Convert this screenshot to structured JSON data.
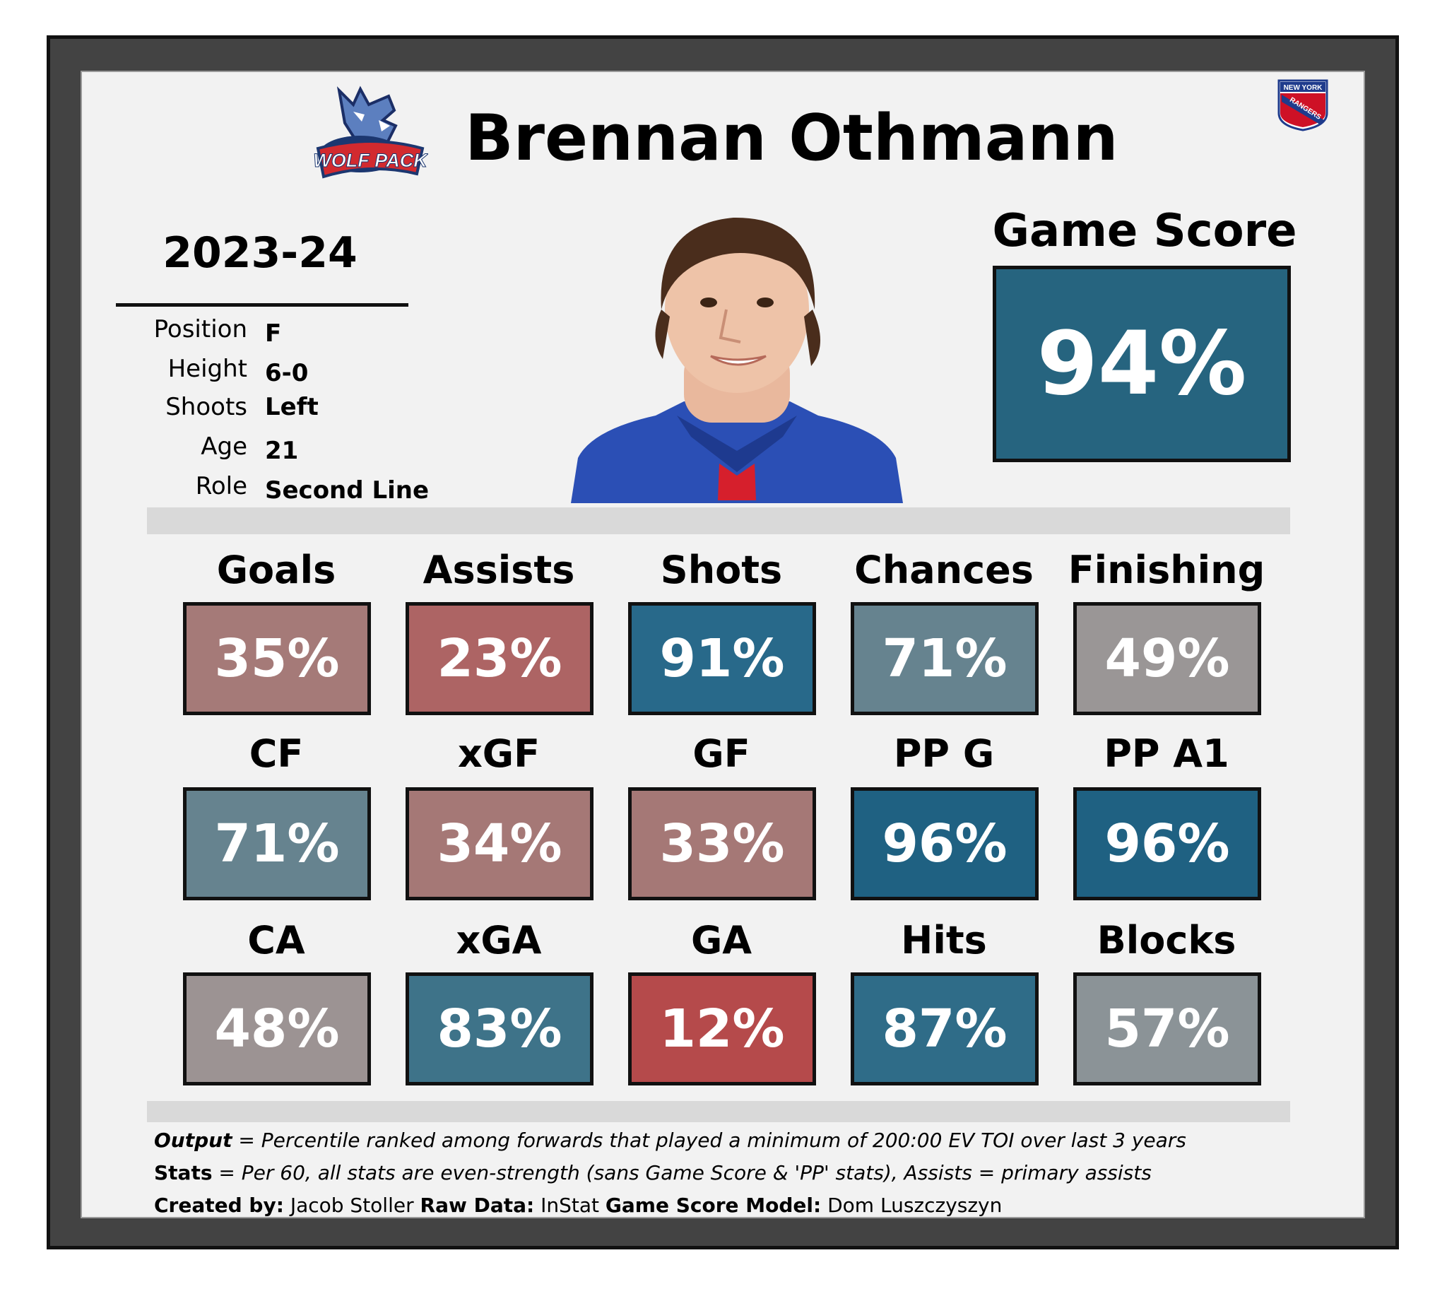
{
  "player_name": "Brennan Othmann",
  "season": "2023-24",
  "info": [
    {
      "label": "Position",
      "value": "F"
    },
    {
      "label": "Height",
      "value": "6-0"
    },
    {
      "label": "Shoots",
      "value": "Left"
    },
    {
      "label": "Age",
      "value": "21"
    },
    {
      "label": "Role",
      "value": "Second Line"
    }
  ],
  "game_score": {
    "label": "Game Score",
    "value": "94%",
    "percentile": 94,
    "color": "#26647f"
  },
  "logos": {
    "left": {
      "icon": "hartford-wolf-pack-logo",
      "text": "WOLF PACK"
    },
    "right": {
      "icon": "new-york-rangers-logo",
      "line1": "NEW YORK",
      "line2": "RANGERS"
    }
  },
  "headshot": {
    "icon": "player-headshot-photo"
  },
  "stats": [
    [
      {
        "label": "Goals",
        "value": "35%",
        "color": "#a57a78"
      },
      {
        "label": "Assists",
        "value": "23%",
        "color": "#ad6464"
      },
      {
        "label": "Shots",
        "value": "91%",
        "color": "#28698a"
      },
      {
        "label": "Chances",
        "value": "71%",
        "color": "#66838f"
      },
      {
        "label": "Finishing",
        "value": "49%",
        "color": "#9a9696"
      }
    ],
    [
      {
        "label": "CF",
        "value": "71%",
        "color": "#66838f"
      },
      {
        "label": "xGF",
        "value": "34%",
        "color": "#a57876"
      },
      {
        "label": "GF",
        "value": "33%",
        "color": "#a57876"
      },
      {
        "label": "PP G",
        "value": "96%",
        "color": "#1f6182"
      },
      {
        "label": "PP A1",
        "value": "96%",
        "color": "#1f6182"
      }
    ],
    [
      {
        "label": "CA",
        "value": "48%",
        "color": "#9c9393"
      },
      {
        "label": "xGA",
        "value": "83%",
        "color": "#3e7389"
      },
      {
        "label": "GA",
        "value": "12%",
        "color": "#b54a4b"
      },
      {
        "label": "Hits",
        "value": "87%",
        "color": "#2f6c88"
      },
      {
        "label": "Blocks",
        "value": "57%",
        "color": "#8b9397"
      }
    ]
  ],
  "footer": {
    "line1_label": "Output",
    "line1_text": " = Percentile ranked among forwards that played a minimum of 200:00 EV TOI over last 3 years",
    "line2_label": "Stats",
    "line2_text": " = Per 60, all stats are even-strength (sans Game Score & 'PP' stats), Assists = primary assists",
    "created_label": "Created by:",
    "created_value": "Jacob Stoller",
    "raw_label": "Raw Data:",
    "raw_value": "InStat",
    "model_label": "Game Score Model:",
    "model_value": "Dom Luszczyszyn"
  }
}
